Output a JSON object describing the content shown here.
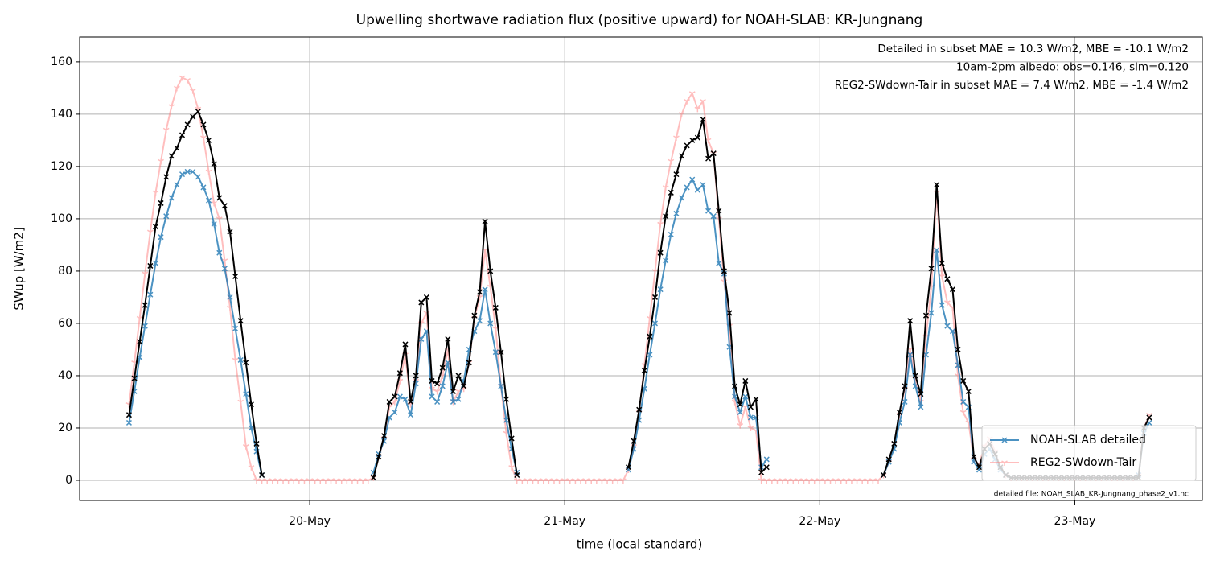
{
  "chart_data": {
    "type": "line",
    "title": "Upwelling shortwave radiation flux (positive upward) for NOAH-SLAB: KR-Jungnang",
    "x_label": "time (local standard)",
    "y_label": "SWup [W/m2]",
    "xlim": [
      2.35,
      108.0
    ],
    "ylim": [
      -7.7,
      169.5
    ],
    "xticks": [
      {
        "value": 24,
        "label": "20-May"
      },
      {
        "value": 48,
        "label": "21-May"
      },
      {
        "value": 72,
        "label": "22-May"
      },
      {
        "value": 96,
        "label": "23-May"
      }
    ],
    "yticks": [
      0,
      20,
      40,
      60,
      80,
      100,
      120,
      140,
      160
    ],
    "grid": true,
    "legend": "lower right",
    "annotations": [
      {
        "text": "Detailed in subset MAE = 10.3 W/m2, MBE = -10.1 W/m2",
        "color": "#1f77b4"
      },
      {
        "text": "10am-2pm albedo: obs=0.146, sim=0.120",
        "color": "#000000"
      },
      {
        "text": "REG2-SWdown-Tair in subset MAE = 7.4 W/m2, MBE = -1.4 W/m2",
        "color": "#ff0000"
      }
    ],
    "footnote": "detailed file: NOAH_SLAB_KR-Jungnang_phase2_v1.nc",
    "x": [
      7,
      7.5,
      8,
      8.5,
      9,
      9.5,
      10,
      10.5,
      11,
      11.5,
      12,
      12.5,
      13,
      13.5,
      14,
      14.5,
      15,
      15.5,
      16,
      16.5,
      17,
      17.5,
      18,
      18.5,
      19,
      19.5,
      20,
      20.5,
      21,
      21.5,
      22,
      22.5,
      23,
      23.5,
      24,
      24.5,
      25,
      25.5,
      26,
      26.5,
      27,
      27.5,
      28,
      28.5,
      29,
      29.5,
      30,
      30.5,
      31,
      31.5,
      32,
      32.5,
      33,
      33.5,
      34,
      34.5,
      35,
      35.5,
      36,
      36.5,
      37,
      37.5,
      38,
      38.5,
      39,
      39.5,
      40,
      40.5,
      41,
      41.5,
      42,
      42.5,
      43,
      43.5,
      44,
      44.5,
      45,
      45.5,
      46,
      46.5,
      47,
      47.5,
      48,
      48.5,
      49,
      49.5,
      50,
      50.5,
      51,
      51.5,
      52,
      52.5,
      53,
      53.5,
      54,
      54.5,
      55,
      55.5,
      56,
      56.5,
      57,
      57.5,
      58,
      58.5,
      59,
      59.5,
      60,
      60.5,
      61,
      61.5,
      62,
      62.5,
      63,
      63.5,
      64,
      64.5,
      65,
      65.5,
      66,
      66.5,
      67,
      67.5,
      68,
      68.5,
      69,
      69.5,
      70,
      70.5,
      71,
      71.5,
      72,
      72.5,
      73,
      73.5,
      74,
      74.5,
      75,
      75.5,
      76,
      76.5,
      77,
      77.5,
      78,
      78.5,
      79,
      79.5,
      80,
      80.5,
      81,
      81.5,
      82,
      82.5,
      83,
      83.5,
      84,
      84.5,
      85,
      85.5,
      86,
      86.5,
      87,
      87.5,
      88,
      88.5,
      89,
      89.5,
      90,
      90.5,
      91,
      91.5,
      92,
      92.5,
      93,
      93.5,
      94,
      94.5,
      95,
      95.5,
      96,
      96.5,
      97,
      97.5,
      98,
      98.5,
      99,
      99.5,
      100,
      100.5,
      101,
      101.5,
      102,
      102.5,
      103
    ],
    "series": [
      {
        "name": "NOAH-SLAB detailed",
        "color": "#1f77b4",
        "opacity": 0.8,
        "marker": "x",
        "values": [
          22,
          34,
          47,
          59,
          71,
          83,
          93,
          101,
          108,
          113,
          117,
          118,
          118,
          116,
          112,
          107,
          98,
          87,
          81,
          70,
          58,
          46,
          33,
          20,
          11,
          2,
          null,
          null,
          null,
          null,
          null,
          null,
          null,
          null,
          null,
          null,
          null,
          null,
          null,
          null,
          null,
          null,
          null,
          null,
          null,
          null,
          3,
          10,
          15,
          24,
          26,
          32,
          31,
          25,
          37,
          54,
          57,
          32,
          30,
          36,
          45,
          30,
          31,
          38,
          50,
          57,
          61,
          73,
          60,
          49,
          36,
          23,
          12,
          3,
          null,
          null,
          null,
          null,
          null,
          null,
          null,
          null,
          null,
          null,
          null,
          null,
          null,
          null,
          null,
          null,
          null,
          null,
          null,
          null,
          4,
          12,
          23,
          35,
          48,
          60,
          73,
          84,
          94,
          102,
          108,
          112,
          115,
          111,
          113,
          103,
          101,
          83,
          79,
          51,
          32,
          26,
          32,
          24,
          24,
          5,
          8,
          null,
          null,
          null,
          null,
          null,
          null,
          null,
          null,
          null,
          null,
          null,
          null,
          null,
          null,
          null,
          null,
          null,
          null,
          null,
          null,
          null,
          2,
          7,
          12,
          22,
          30,
          48,
          36,
          28,
          48,
          64,
          88,
          67,
          59,
          57,
          44,
          30,
          28,
          7,
          4,
          10,
          12,
          8,
          4,
          2,
          1,
          1,
          1,
          1,
          1,
          1,
          1,
          1,
          1,
          1,
          1,
          1,
          1,
          1,
          1,
          1,
          1,
          1,
          1,
          1,
          1,
          1,
          1,
          1,
          2,
          18,
          22
        ]
      },
      {
        "name": "REG2-SWdown-Tair",
        "color": "#ff7f7f",
        "opacity": 0.5,
        "marker": "tri_down",
        "values": [
          29,
          45,
          62,
          79,
          95,
          110,
          122,
          134,
          143,
          150,
          154,
          153,
          149,
          142,
          131,
          118,
          106,
          100,
          84,
          66,
          46,
          30,
          13,
          5,
          0,
          0,
          0,
          0,
          0,
          0,
          0,
          0,
          0,
          0,
          0,
          0,
          0,
          0,
          0,
          0,
          0,
          0,
          0,
          0,
          0,
          0,
          1,
          9,
          16,
          28,
          30,
          38,
          48,
          29,
          38,
          60,
          64,
          35,
          34,
          40,
          50,
          30,
          34,
          35,
          45,
          62,
          70,
          88,
          74,
          58,
          36,
          18,
          5,
          0,
          0,
          0,
          0,
          0,
          0,
          0,
          0,
          0,
          0,
          0,
          0,
          0,
          0,
          0,
          0,
          0,
          0,
          0,
          0,
          0,
          4,
          13,
          26,
          44,
          62,
          80,
          98,
          112,
          122,
          131,
          140,
          145,
          148,
          142,
          145,
          130,
          125,
          100,
          76,
          59,
          30,
          21,
          28,
          20,
          19,
          0,
          0,
          0,
          0,
          0,
          0,
          0,
          0,
          0,
          0,
          0,
          0,
          0,
          0,
          0,
          0,
          0,
          0,
          0,
          0,
          0,
          0,
          0,
          2,
          7,
          14,
          25,
          35,
          50,
          39,
          30,
          55,
          74,
          110,
          78,
          68,
          66,
          40,
          26,
          22,
          8,
          6,
          13,
          16,
          11,
          5,
          2,
          1,
          1,
          1,
          1,
          1,
          1,
          1,
          1,
          1,
          1,
          1,
          1,
          1,
          1,
          1,
          1,
          1,
          1,
          1,
          1,
          1,
          1,
          1,
          1,
          2,
          20,
          25
        ]
      },
      {
        "name": null,
        "color": "#000000",
        "opacity": 1,
        "marker": "x",
        "values": [
          25,
          39,
          53,
          67,
          82,
          97,
          106,
          116,
          124,
          127,
          132,
          136,
          139,
          141,
          136,
          130,
          121,
          108,
          105,
          95,
          78,
          61,
          45,
          29,
          14,
          2,
          null,
          null,
          null,
          null,
          null,
          null,
          null,
          null,
          null,
          null,
          null,
          null,
          null,
          null,
          null,
          null,
          null,
          null,
          null,
          null,
          1,
          9,
          17,
          30,
          32,
          41,
          52,
          30,
          40,
          68,
          70,
          38,
          37,
          43,
          54,
          34,
          40,
          36,
          45,
          63,
          72,
          99,
          80,
          66,
          49,
          31,
          16,
          2,
          null,
          null,
          null,
          null,
          null,
          null,
          null,
          null,
          null,
          null,
          null,
          null,
          null,
          null,
          null,
          null,
          null,
          null,
          null,
          null,
          5,
          15,
          27,
          42,
          55,
          70,
          87,
          101,
          110,
          117,
          124,
          128,
          130,
          131,
          138,
          123,
          125,
          103,
          80,
          64,
          36,
          29,
          38,
          28,
          31,
          3,
          5,
          null,
          null,
          null,
          null,
          null,
          null,
          null,
          null,
          null,
          null,
          null,
          null,
          null,
          null,
          null,
          null,
          null,
          null,
          null,
          null,
          null,
          2,
          8,
          14,
          26,
          36,
          61,
          40,
          33,
          63,
          81,
          113,
          83,
          77,
          73,
          50,
          38,
          34,
          9,
          5,
          12,
          14,
          10,
          5,
          2,
          1,
          1,
          1,
          1,
          1,
          1,
          1,
          1,
          1,
          1,
          1,
          1,
          1,
          1,
          1,
          1,
          1,
          1,
          1,
          1,
          1,
          1,
          1,
          1,
          1,
          20,
          24
        ]
      }
    ]
  }
}
